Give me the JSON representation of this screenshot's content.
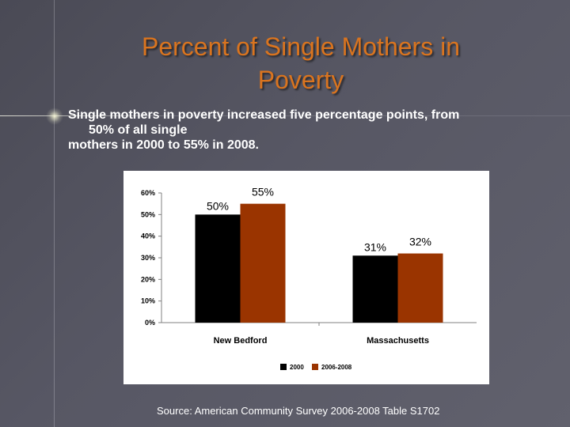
{
  "slide": {
    "title_line1": "Percent of Single Mothers in",
    "title_line2": "Poverty",
    "body_line1": "Single mothers in poverty increased five percentage points, from",
    "body_line2": "50% of all single",
    "body_line3": "mothers in 2000 to 55% in 2008.",
    "source": "Source:  American Community Survey 2006-2008 Table S1702"
  },
  "colors": {
    "series_2000": "#000000",
    "series_2006_2008": "#9a3400",
    "title": "#d9741f"
  },
  "chart_data": {
    "type": "bar",
    "title": "",
    "xlabel": "",
    "ylabel": "",
    "categories": [
      "New Bedford",
      "Massachusetts"
    ],
    "series": [
      {
        "name": "2000",
        "values": [
          50,
          31
        ],
        "labels": [
          "50%",
          "31%"
        ]
      },
      {
        "name": "2006-2008",
        "values": [
          55,
          32
        ],
        "labels": [
          "55%",
          "32%"
        ]
      }
    ],
    "ylim": [
      0,
      60
    ],
    "yticks": [
      0,
      10,
      20,
      30,
      40,
      50,
      60
    ],
    "ytick_labels": [
      "0%",
      "10%",
      "20%",
      "30%",
      "40%",
      "50%",
      "60%"
    ],
    "legend": "bottom-center",
    "grid": false
  }
}
